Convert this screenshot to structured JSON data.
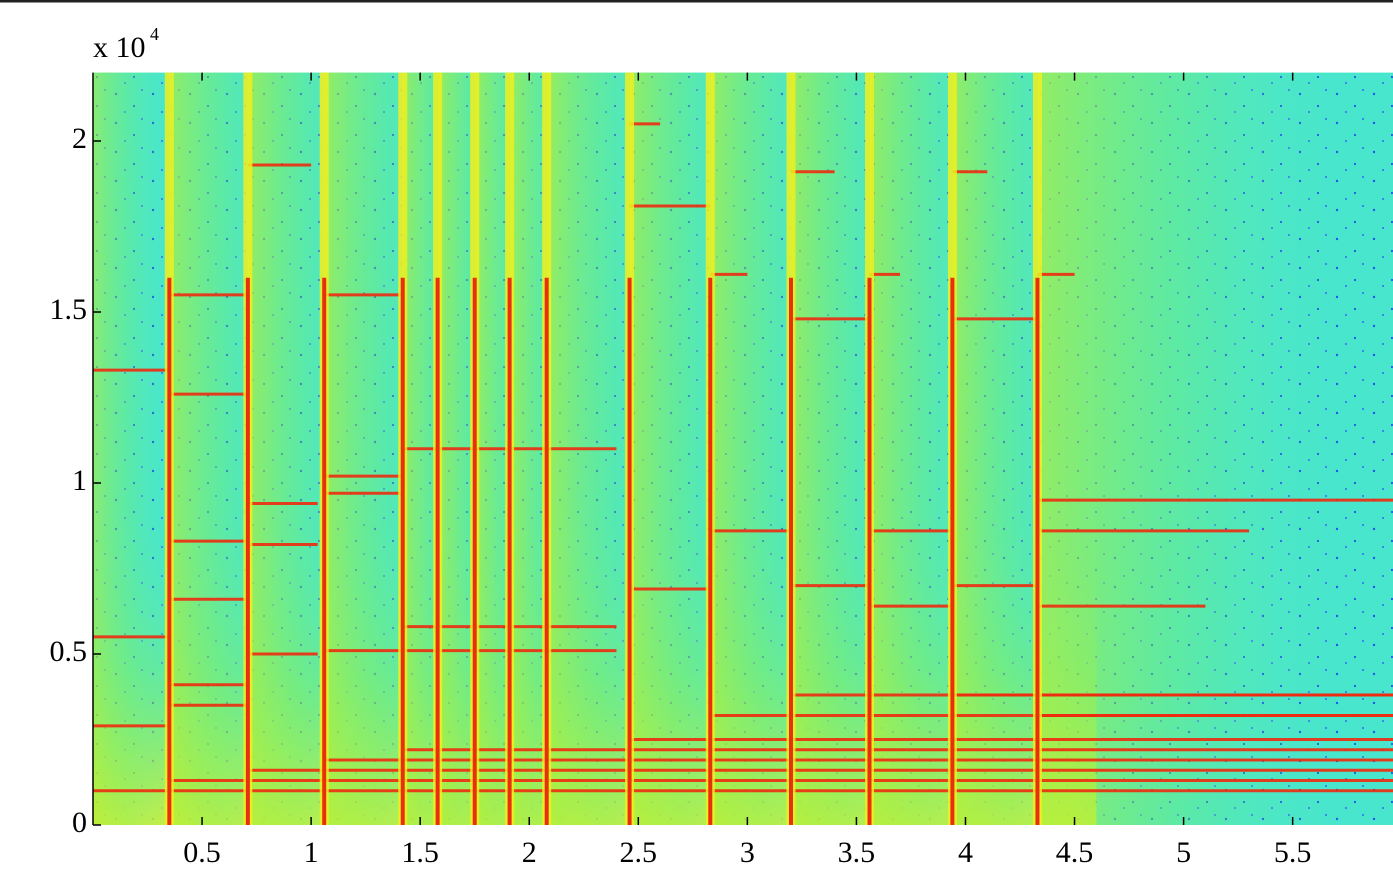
{
  "chart_data": {
    "type": "spectrogram",
    "y_scale_label": "x 10",
    "y_scale_exponent": "4",
    "xlim": [
      0,
      5.96
    ],
    "ylim": [
      0,
      2.2
    ],
    "xticks": [
      0.5,
      1,
      1.5,
      2,
      2.5,
      3,
      3.5,
      4,
      4.5,
      5,
      5.5
    ],
    "yticks": [
      0,
      0.5,
      1,
      1.5,
      2
    ],
    "onsets": [
      0.35,
      0.71,
      1.06,
      1.42,
      1.58,
      1.75,
      1.91,
      2.08,
      2.46,
      2.83,
      3.2,
      3.56,
      3.94,
      4.33
    ],
    "partials": [
      {
        "x0": 0,
        "x1": 5.96,
        "y": 0.1
      },
      {
        "x0": 0,
        "x1": 0.35,
        "y": 0.55
      },
      {
        "x0": 0,
        "x1": 0.35,
        "y": 1.33
      },
      {
        "x0": 0,
        "x1": 0.35,
        "y": 0.29
      },
      {
        "x0": 0.35,
        "x1": 5.96,
        "y": 0.13
      },
      {
        "x0": 0.35,
        "x1": 0.71,
        "y": 0.35
      },
      {
        "x0": 0.35,
        "x1": 0.71,
        "y": 0.83
      },
      {
        "x0": 0.35,
        "x1": 0.71,
        "y": 0.41
      },
      {
        "x0": 0.35,
        "x1": 0.71,
        "y": 1.26
      },
      {
        "x0": 0.35,
        "x1": 0.71,
        "y": 0.66
      },
      {
        "x0": 0.35,
        "x1": 0.71,
        "y": 1.55
      },
      {
        "x0": 0.71,
        "x1": 5.96,
        "y": 0.16
      },
      {
        "x0": 0.71,
        "x1": 1.03,
        "y": 0.82
      },
      {
        "x0": 0.71,
        "x1": 1.03,
        "y": 0.94
      },
      {
        "x0": 0.71,
        "x1": 1.03,
        "y": 0.5
      },
      {
        "x0": 0.71,
        "x1": 1.0,
        "y": 1.93
      },
      {
        "x0": 1.06,
        "x1": 5.96,
        "y": 0.19
      },
      {
        "x0": 1.06,
        "x1": 1.42,
        "y": 0.51
      },
      {
        "x0": 1.06,
        "x1": 1.42,
        "y": 0.97
      },
      {
        "x0": 1.06,
        "x1": 1.42,
        "y": 1.55
      },
      {
        "x0": 1.06,
        "x1": 1.42,
        "y": 1.02
      },
      {
        "x0": 1.42,
        "x1": 5.96,
        "y": 0.22
      },
      {
        "x0": 1.42,
        "x1": 2.4,
        "y": 1.1
      },
      {
        "x0": 1.42,
        "x1": 2.4,
        "y": 0.58
      },
      {
        "x0": 1.42,
        "x1": 2.4,
        "y": 0.51
      },
      {
        "x0": 2.46,
        "x1": 5.96,
        "y": 0.25
      },
      {
        "x0": 2.46,
        "x1": 2.83,
        "y": 0.69
      },
      {
        "x0": 2.46,
        "x1": 2.6,
        "y": 2.05
      },
      {
        "x0": 2.46,
        "x1": 2.83,
        "y": 1.81
      },
      {
        "x0": 2.83,
        "x1": 5.96,
        "y": 0.32
      },
      {
        "x0": 2.83,
        "x1": 3.2,
        "y": 0.86
      },
      {
        "x0": 2.83,
        "x1": 3.0,
        "y": 1.61
      },
      {
        "x0": 3.2,
        "x1": 5.96,
        "y": 0.38
      },
      {
        "x0": 3.2,
        "x1": 3.56,
        "y": 1.48
      },
      {
        "x0": 3.2,
        "x1": 3.56,
        "y": 0.7
      },
      {
        "x0": 3.2,
        "x1": 3.4,
        "y": 1.91
      },
      {
        "x0": 3.56,
        "x1": 3.94,
        "y": 0.86
      },
      {
        "x0": 3.56,
        "x1": 3.94,
        "y": 0.64
      },
      {
        "x0": 3.56,
        "x1": 3.7,
        "y": 1.61
      },
      {
        "x0": 3.94,
        "x1": 5.96,
        "y": 0.38
      },
      {
        "x0": 3.94,
        "x1": 4.33,
        "y": 1.48
      },
      {
        "x0": 3.94,
        "x1": 4.33,
        "y": 0.7
      },
      {
        "x0": 3.94,
        "x1": 4.1,
        "y": 1.91
      },
      {
        "x0": 4.33,
        "x1": 5.96,
        "y": 0.32
      },
      {
        "x0": 4.33,
        "x1": 5.3,
        "y": 0.86
      },
      {
        "x0": 4.33,
        "x1": 5.96,
        "y": 0.95
      },
      {
        "x0": 4.33,
        "x1": 5.1,
        "y": 0.64
      },
      {
        "x0": 4.33,
        "x1": 4.5,
        "y": 1.61
      }
    ]
  }
}
